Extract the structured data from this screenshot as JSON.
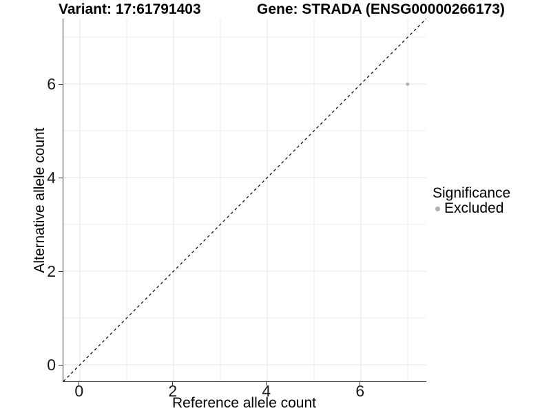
{
  "titles": {
    "variant": "Variant: 17:61791403",
    "gene": "Gene: STRADA (ENSG00000266173)"
  },
  "chart_data": {
    "type": "scatter",
    "title_left": "Variant: 17:61791403",
    "title_right": "Gene: STRADA (ENSG00000266173)",
    "xlabel": "Reference allele count",
    "ylabel": "Alternative allele count",
    "xlim": [
      -0.35,
      7.4
    ],
    "ylim": [
      -0.35,
      7.4
    ],
    "x_ticks": [
      0,
      2,
      4,
      6
    ],
    "y_ticks": [
      0,
      2,
      4,
      6
    ],
    "x_minor_gridlines": [
      1,
      3,
      5,
      7
    ],
    "y_minor_gridlines": [
      1,
      3,
      5,
      7
    ],
    "grid": true,
    "points": [
      {
        "x": 7,
        "y": 6,
        "series": "Excluded"
      }
    ],
    "reference_line": {
      "slope": 1,
      "intercept": 0,
      "style": "dashed"
    },
    "legend": {
      "position": "right",
      "title": "Significance",
      "entries": [
        {
          "label": "Excluded",
          "color": "#b0b0b0"
        }
      ]
    },
    "style": {
      "point_color": "#b0b0b0",
      "point_radius": 2.5,
      "grid_major_color": "#e4e4e4",
      "grid_minor_color": "#ededed",
      "axis_color": "#333333",
      "dashed_line_color": "#000000",
      "background": "#ffffff"
    }
  }
}
